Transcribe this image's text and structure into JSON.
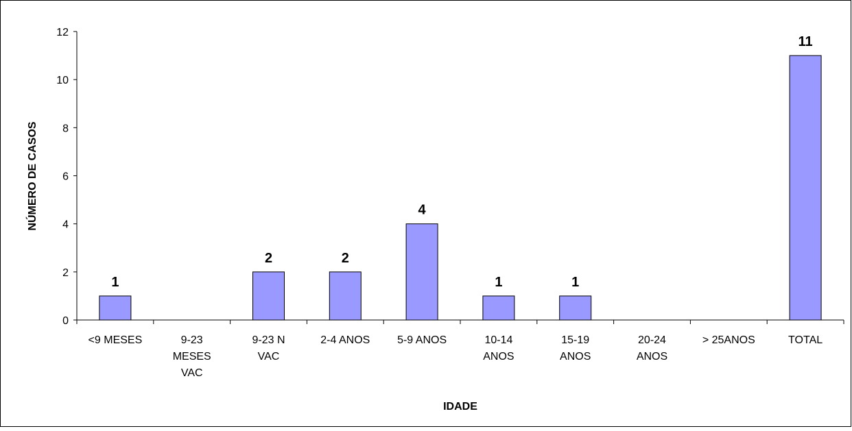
{
  "chart_data": {
    "type": "bar",
    "title": "",
    "xlabel": "IDADE",
    "ylabel": "NÚMERO DE CASOS",
    "ylim": [
      0,
      12
    ],
    "yticks": [
      0,
      2,
      4,
      6,
      8,
      10,
      12
    ],
    "categories": [
      [
        "<9 MESES"
      ],
      [
        "9-23",
        "MESES",
        "VAC"
      ],
      [
        "9-23 N",
        "VAC"
      ],
      [
        "2-4 ANOS"
      ],
      [
        "5-9 ANOS"
      ],
      [
        "10-14",
        "ANOS"
      ],
      [
        "15-19",
        "ANOS"
      ],
      [
        "20-24",
        "ANOS"
      ],
      [
        "> 25ANOS"
      ],
      [
        "TOTAL"
      ]
    ],
    "values": [
      1,
      0,
      2,
      2,
      4,
      1,
      1,
      0,
      0,
      11
    ],
    "data_labels": [
      "1",
      "",
      "2",
      "2",
      "4",
      "1",
      "1",
      "",
      "",
      "11"
    ],
    "grid": false,
    "legend": "none",
    "colors": {
      "bar_fill": "#9999ff",
      "bar_stroke": "#000000",
      "axis": "#000000"
    }
  }
}
